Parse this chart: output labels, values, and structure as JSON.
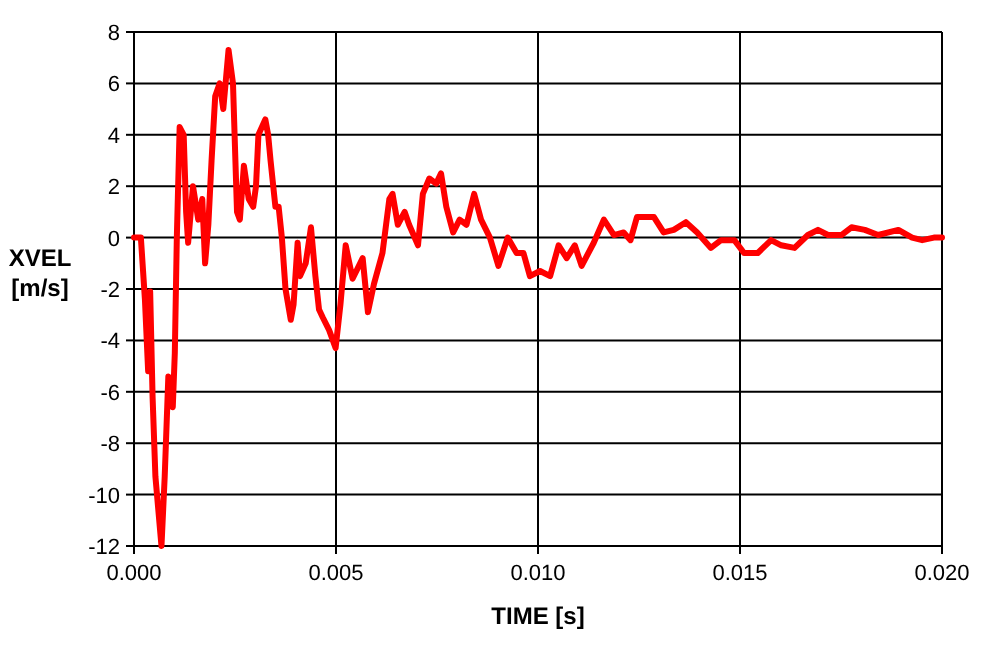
{
  "chart_data": {
    "type": "line",
    "xlabel": "TIME [s]",
    "ylabel": "XVEL\n[m/s]",
    "xlim": [
      0,
      0.02
    ],
    "ylim": [
      -12,
      8
    ],
    "xticks": [
      {
        "value": 0,
        "label": "0.000"
      },
      {
        "value": 0.005,
        "label": "0.005"
      },
      {
        "value": 0.01,
        "label": "0.010"
      },
      {
        "value": 0.015,
        "label": "0.015"
      },
      {
        "value": 0.02,
        "label": "0.020"
      }
    ],
    "yticks": [
      -12,
      -10,
      -8,
      -6,
      -4,
      -2,
      0,
      2,
      4,
      6,
      8
    ],
    "grid": true,
    "line_style": "solid",
    "marker": "none",
    "series": [
      {
        "color": "#ff0000",
        "x": [
          0,
          0.00017,
          0.00027,
          0.00035,
          0.0004,
          0.00046,
          0.00053,
          0.00068,
          0.00076,
          0.00085,
          0.00096,
          0.00101,
          0.00106,
          0.00113,
          0.00123,
          0.00129,
          0.00134,
          0.00146,
          0.00159,
          0.00169,
          0.00176,
          0.00184,
          0.00192,
          0.00201,
          0.00212,
          0.00221,
          0.00234,
          0.00245,
          0.00255,
          0.00262,
          0.00272,
          0.00284,
          0.00295,
          0.00302,
          0.00308,
          0.00325,
          0.00332,
          0.00338,
          0.0035,
          0.00358,
          0.00366,
          0.00375,
          0.00388,
          0.00395,
          0.00405,
          0.00411,
          0.00425,
          0.00438,
          0.00449,
          0.00458,
          0.00467,
          0.00483,
          0.00499,
          0.00511,
          0.00524,
          0.00541,
          0.00566,
          0.00579,
          0.00594,
          0.00615,
          0.00632,
          0.0064,
          0.00653,
          0.0067,
          0.00681,
          0.00703,
          0.00715,
          0.00731,
          0.00748,
          0.0076,
          0.00773,
          0.0079,
          0.00806,
          0.00823,
          0.00842,
          0.00859,
          0.00881,
          0.00902,
          0.00925,
          0.00947,
          0.00964,
          0.0098,
          0.01005,
          0.0103,
          0.01051,
          0.01071,
          0.01091,
          0.01108,
          0.01138,
          0.01163,
          0.01188,
          0.01212,
          0.01229,
          0.01245,
          0.01287,
          0.01311,
          0.01336,
          0.01366,
          0.01394,
          0.01428,
          0.01453,
          0.01486,
          0.0151,
          0.01544,
          0.01577,
          0.01602,
          0.01635,
          0.01668,
          0.01693,
          0.01718,
          0.01751,
          0.01776,
          0.01809,
          0.01842,
          0.01892,
          0.01926,
          0.01951,
          0.0198,
          0.02
        ],
        "values": [
          0,
          0,
          -2.4,
          -5.2,
          -2.1,
          -6.2,
          -9.3,
          -12,
          -9.3,
          -5.4,
          -6.6,
          -4.5,
          0,
          4.3,
          4,
          1,
          -0.2,
          2,
          0.7,
          1.5,
          -1,
          0.5,
          3,
          5.5,
          6,
          5,
          7.3,
          6,
          1,
          0.7,
          2.8,
          1.5,
          1.2,
          2,
          4,
          4.6,
          4,
          3,
          1.2,
          1.2,
          0,
          -2,
          -3.2,
          -2.6,
          -0.2,
          -1.5,
          -1,
          0.4,
          -1.5,
          -2.8,
          -3.1,
          -3.6,
          -4.3,
          -2.6,
          -0.3,
          -1.6,
          -0.8,
          -2.9,
          -1.8,
          -0.6,
          1.5,
          1.7,
          0.5,
          1,
          0.5,
          -0.3,
          1.7,
          2.3,
          2.1,
          2.5,
          1.2,
          0.2,
          0.7,
          0.5,
          1.7,
          0.7,
          0,
          -1.1,
          0,
          -0.6,
          -0.6,
          -1.5,
          -1.3,
          -1.5,
          -0.3,
          -0.8,
          -0.3,
          -1.1,
          -0.2,
          0.7,
          0.1,
          0.2,
          -0.1,
          0.8,
          0.8,
          0.2,
          0.3,
          0.6,
          0.2,
          -0.4,
          -0.1,
          -0.1,
          -0.6,
          -0.6,
          -0.1,
          -0.3,
          -0.4,
          0.1,
          0.3,
          0.1,
          0.1,
          0.4,
          0.3,
          0.1,
          0.3,
          0,
          -0.1,
          0,
          0
        ]
      }
    ]
  }
}
